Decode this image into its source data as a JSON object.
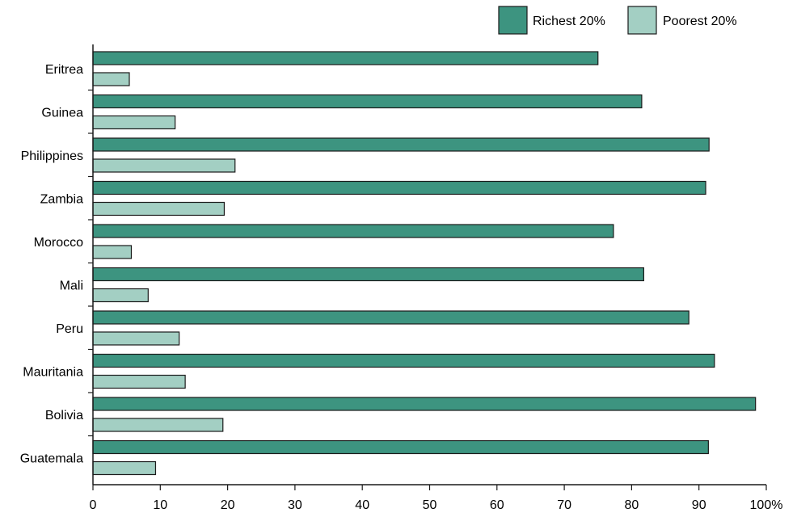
{
  "chart_data": {
    "type": "bar",
    "orientation": "horizontal",
    "categories": [
      "Eritrea",
      "Guinea",
      "Philippines",
      "Zambia",
      "Morocco",
      "Mali",
      "Peru",
      "Mauritania",
      "Bolivia",
      "Guatemala"
    ],
    "series": [
      {
        "name": "Richest 20%",
        "color": "#3d9480",
        "values": [
          75,
          81.5,
          91.5,
          91,
          77.3,
          81.8,
          88.5,
          92.3,
          98.4,
          91.4
        ]
      },
      {
        "name": "Poorest 20%",
        "color": "#a3cfc3",
        "values": [
          5.4,
          12.2,
          21.1,
          19.5,
          5.7,
          8.2,
          12.8,
          13.7,
          19.3,
          9.3
        ]
      }
    ],
    "xlim": [
      0,
      100
    ],
    "xticks": [
      "0",
      "10",
      "20",
      "30",
      "40",
      "50",
      "60",
      "70",
      "80",
      "90",
      "100%"
    ],
    "legend_position": "top-right",
    "grid": false
  }
}
